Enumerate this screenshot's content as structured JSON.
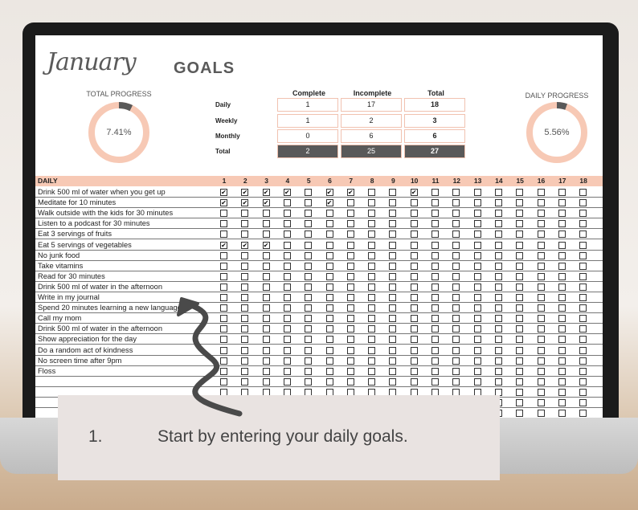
{
  "header": {
    "month": "January",
    "title": "GOALS"
  },
  "total_progress": {
    "label": "TOTAL PROGRESS",
    "value": "7.41%",
    "fraction": 0.0741
  },
  "daily_progress": {
    "label": "DAILY PROGRESS",
    "value": "5.56%",
    "fraction": 0.0556
  },
  "summary": {
    "headers": [
      "Complete",
      "Incomplete",
      "Total"
    ],
    "rows": [
      {
        "label": "Daily",
        "values": [
          "1",
          "17",
          "18"
        ]
      },
      {
        "label": "Weekly",
        "values": [
          "1",
          "2",
          "3"
        ]
      },
      {
        "label": "Monthly",
        "values": [
          "0",
          "6",
          "6"
        ]
      },
      {
        "label": "Total",
        "values": [
          "2",
          "25",
          "27"
        ]
      }
    ]
  },
  "daily": {
    "header": "DAILY",
    "days": [
      "1",
      "2",
      "3",
      "4",
      "5",
      "6",
      "7",
      "8",
      "9",
      "10",
      "11",
      "12",
      "13",
      "14",
      "15",
      "16",
      "17",
      "18"
    ],
    "goals": [
      {
        "label": "Drink 500 ml of water when you get up",
        "checked": [
          1,
          2,
          3,
          4,
          6,
          7,
          10
        ]
      },
      {
        "label": "Meditate for 10 minutes",
        "checked": [
          1,
          2,
          3,
          6
        ]
      },
      {
        "label": "Walk outside with the kids for 30 minutes",
        "checked": []
      },
      {
        "label": "Listen to a podcast for 30 minutes",
        "checked": []
      },
      {
        "label": "Eat 3 servings of fruits",
        "checked": []
      },
      {
        "label": "Eat 5 servings of vegetables",
        "checked": [
          1,
          2,
          3
        ]
      },
      {
        "label": "No junk food",
        "checked": []
      },
      {
        "label": "Take vitamins",
        "checked": []
      },
      {
        "label": "Read for 30 minutes",
        "checked": []
      },
      {
        "label": "Drink 500 ml of water in the afternoon",
        "checked": []
      },
      {
        "label": "Write in my journal",
        "checked": []
      },
      {
        "label": "Spend 20 minutes learning a new language",
        "checked": []
      },
      {
        "label": "Call my mom",
        "checked": []
      },
      {
        "label": "Drink 500 ml of water in the afternoon",
        "checked": []
      },
      {
        "label": "Show appreciation for the day",
        "checked": []
      },
      {
        "label": "Do a random act of kindness",
        "checked": []
      },
      {
        "label": "No screen time after 9pm",
        "checked": []
      },
      {
        "label": "Floss",
        "checked": []
      },
      {
        "label": "",
        "checked": []
      },
      {
        "label": "",
        "checked": []
      },
      {
        "label": "",
        "checked": []
      },
      {
        "label": "",
        "checked": []
      }
    ]
  },
  "caption": {
    "number": "1.",
    "text": "Start by entering your daily goals."
  },
  "colors": {
    "accent": "#f7c9b5",
    "dark": "#595959",
    "caption_bg": "#e9e3e1"
  }
}
